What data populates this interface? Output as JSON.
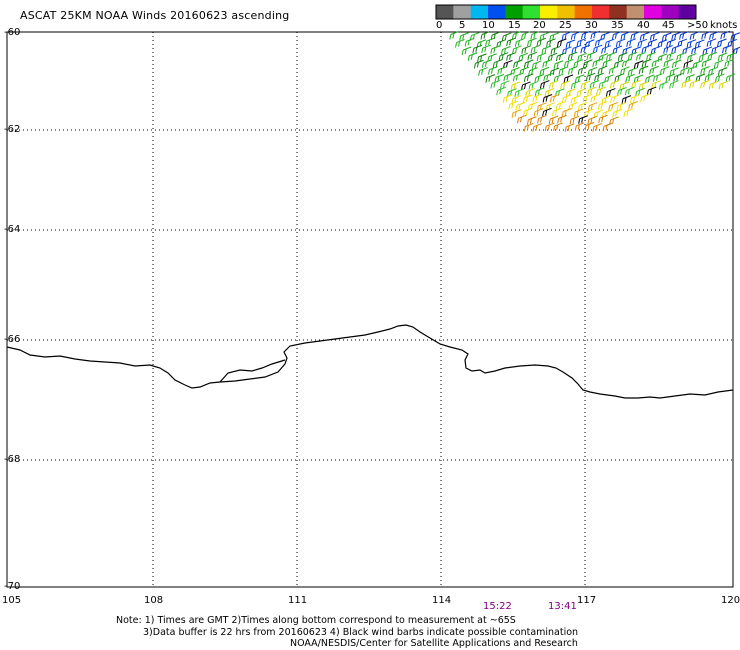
{
  "title": "ASCAT 25KM NOAA Winds 20160623 ascending",
  "colorbar": {
    "colors": [
      "#555555",
      "#a0a0a0",
      "#00b8f0",
      "#0050f0",
      "#00a000",
      "#30e030",
      "#f8f000",
      "#f0c000",
      "#f07000",
      "#f03030",
      "#903020",
      "#c09070",
      "#e000e0",
      "#a000c0",
      "#6000a0"
    ],
    "tick_labels": [
      "0",
      "5",
      "10",
      "15",
      "20",
      "25",
      "30",
      "35",
      "40",
      "45",
      ">50"
    ],
    "unit": "knots"
  },
  "map": {
    "lat_labels": [
      "-60",
      "-62",
      "-64",
      "-66",
      "-68",
      "-70"
    ],
    "lon_labels": [
      "105",
      "108",
      "111",
      "114",
      "117",
      "120"
    ]
  },
  "times": [
    {
      "label": "15:22",
      "color": "#800080"
    },
    {
      "label": "13:41",
      "color": "#800080"
    }
  ],
  "notes": {
    "line1": "Note: 1) Times are GMT 2)Times along bottom correspond to measurement at ~65S",
    "line2": "3)Data buffer is 22 hrs from 20160623 4) Black wind barbs indicate possible contamination",
    "line3": "NOAA/NESDIS/Center for Satellite Applications and Research"
  }
}
